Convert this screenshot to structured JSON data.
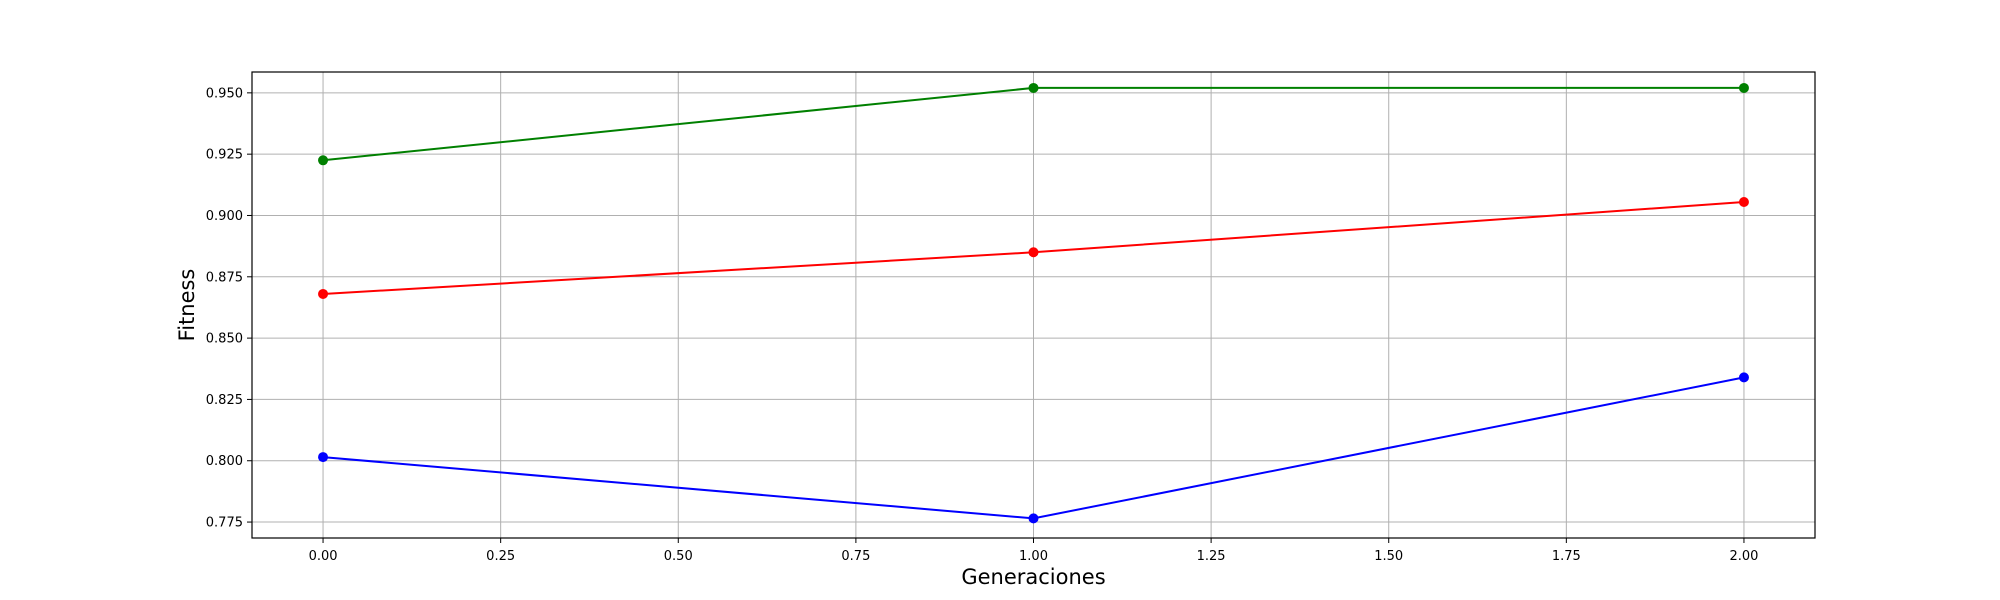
{
  "chart_data": {
    "type": "line",
    "title": "",
    "xlabel": "Generaciones",
    "ylabel": "Fitness",
    "xlim": [
      -0.1,
      2.1
    ],
    "ylim": [
      0.7685,
      0.9585
    ],
    "x_ticks": [
      0.0,
      0.25,
      0.5,
      0.75,
      1.0,
      1.25,
      1.5,
      1.75,
      2.0
    ],
    "x_tick_labels": [
      "0.00",
      "0.25",
      "0.50",
      "0.75",
      "1.00",
      "1.25",
      "1.50",
      "1.75",
      "2.00"
    ],
    "y_ticks": [
      0.775,
      0.8,
      0.825,
      0.85,
      0.875,
      0.9,
      0.925,
      0.95
    ],
    "y_tick_labels": [
      "0.775",
      "0.800",
      "0.825",
      "0.850",
      "0.875",
      "0.900",
      "0.925",
      "0.950"
    ],
    "grid": true,
    "legend": "none",
    "x": [
      0,
      1,
      2
    ],
    "series": [
      {
        "color": "#008000",
        "values": [
          0.9225,
          0.952,
          0.952
        ]
      },
      {
        "color": "#ff0000",
        "values": [
          0.868,
          0.885,
          0.9055
        ]
      },
      {
        "color": "#0000ff",
        "values": [
          0.8015,
          0.7765,
          0.834
        ]
      }
    ]
  }
}
